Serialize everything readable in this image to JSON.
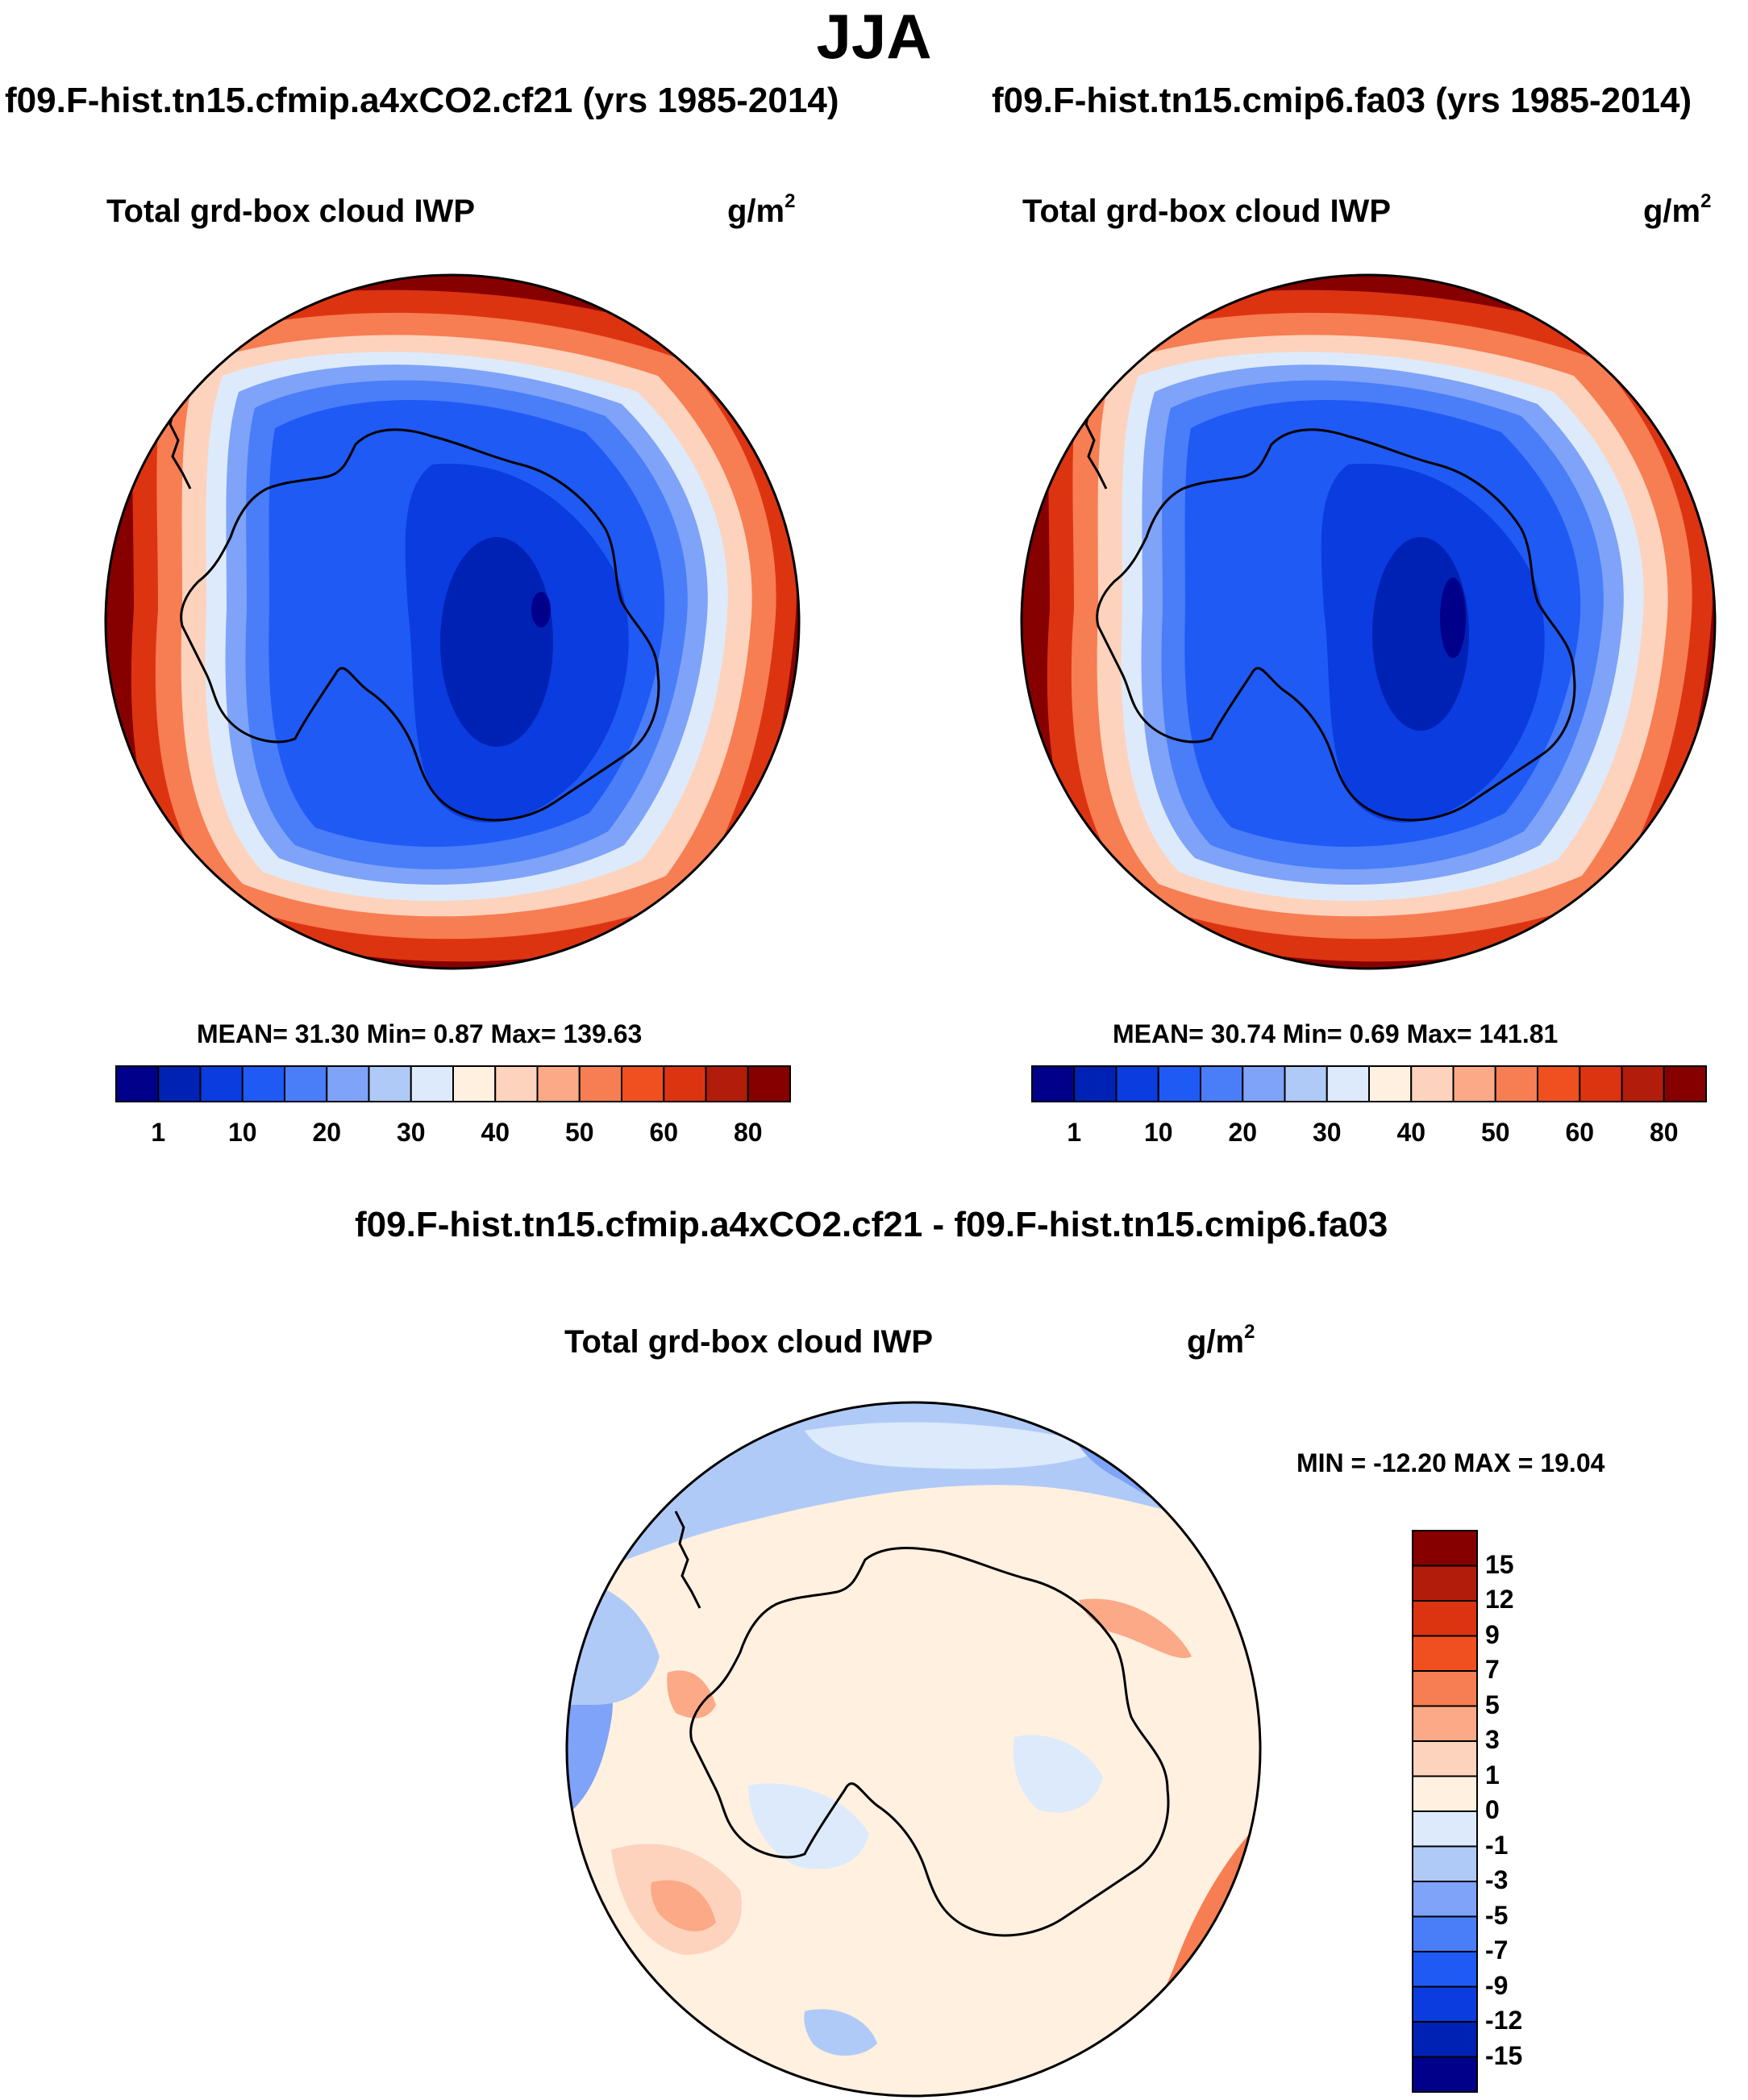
{
  "title": "JJA",
  "panels": [
    {
      "case": "f09.F-hist.tn15.cfmip.a4xCO2.cf21 (yrs 1985-2014)",
      "variable": "Total grd-box cloud IWP",
      "units": "g/m",
      "units_exp": "2",
      "stats_line": "MEAN=  31.30   Min=    0.87   Max= 139.63",
      "stats": {
        "mean": 31.3,
        "min": 0.87,
        "max": 139.63
      }
    },
    {
      "case": "f09.F-hist.tn15.cmip6.fa03 (yrs 1985-2014)",
      "variable": "Total grd-box cloud IWP",
      "units": "g/m",
      "units_exp": "2",
      "stats_line": "MEAN=  30.74   Min=    0.69   Max= 141.81",
      "stats": {
        "mean": 30.74,
        "min": 0.69,
        "max": 141.81
      }
    }
  ],
  "colorbar_main": {
    "colors": [
      "#00008b",
      "#0022b4",
      "#0a3ce0",
      "#1f5af5",
      "#4a7df8",
      "#7ea3f8",
      "#b0caf8",
      "#ddeafb",
      "#fff0e0",
      "#fdd3bd",
      "#fba986",
      "#f77d52",
      "#f0501f",
      "#dc3411",
      "#b21c0a",
      "#860000"
    ],
    "tick_labels": [
      "1",
      "10",
      "20",
      "30",
      "40",
      "50",
      "60",
      "80"
    ]
  },
  "difference": {
    "title": "f09.F-hist.tn15.cfmip.a4xCO2.cf21 - f09.F-hist.tn15.cmip6.fa03",
    "variable": "Total grd-box cloud IWP",
    "units": "g/m",
    "units_exp": "2",
    "minmax_line": "MIN = -12.20 MAX =  19.04",
    "stats": {
      "min": -12.2,
      "max": 19.04
    },
    "colorbar": {
      "colors_top_to_bottom": [
        "#860000",
        "#b21c0a",
        "#dc3411",
        "#f0501f",
        "#f77d52",
        "#fba986",
        "#fdd3bd",
        "#fff0e0",
        "#ddeafb",
        "#b0caf8",
        "#7ea3f8",
        "#4a7df8",
        "#1f5af5",
        "#0a3ce0",
        "#0022b4",
        "#00008b"
      ],
      "tick_labels": [
        "15",
        "12",
        "9",
        "7",
        "5",
        "3",
        "1",
        "0",
        "-1",
        "-3",
        "-5",
        "-7",
        "-9",
        "-12",
        "-15"
      ]
    }
  },
  "map": {
    "region": "Southern Hemisphere polar stereographic",
    "feature": "Antarctica coastline"
  }
}
